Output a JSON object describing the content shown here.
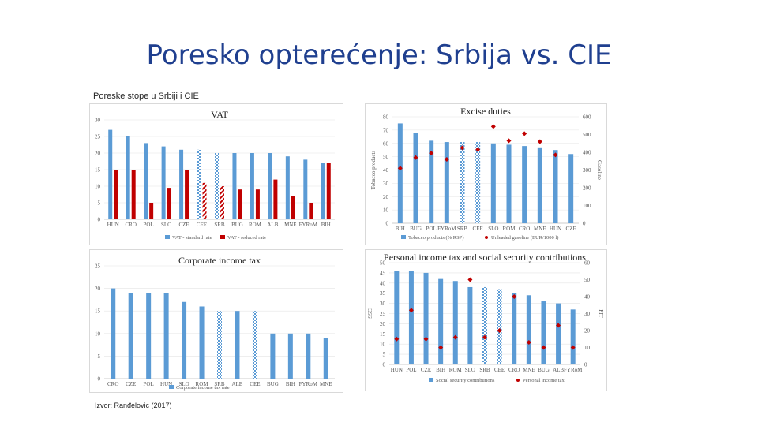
{
  "page": {
    "title": "Poresko opterećenje: Srbija vs. CIE",
    "subtitle": "Poreske stope u Srbiji i CIE",
    "source": "Izvor: Ranđelovic (2017)"
  },
  "colors": {
    "blue": "#5b9bd5",
    "red": "#c00000",
    "title": "#1f3f8f"
  },
  "chart_data": [
    {
      "type": "bar",
      "title": "VAT",
      "categories": [
        "HUN",
        "CRO",
        "POL",
        "SLO",
        "CZE",
        "CEE",
        "SRB",
        "BUG",
        "ROM",
        "ALB",
        "MNE",
        "FYRoM",
        "BIH"
      ],
      "series": [
        {
          "name": "VAT - standard rate",
          "values": [
            27,
            25,
            23,
            22,
            21,
            21,
            20,
            20,
            20,
            20,
            19,
            18,
            17
          ]
        },
        {
          "name": "VAT - reduced rate",
          "values": [
            15,
            15,
            5,
            9.5,
            15,
            11,
            10,
            9,
            9,
            12,
            7,
            5,
            17
          ]
        }
      ],
      "hatched": [
        "CEE",
        "SRB"
      ],
      "ylim": [
        0,
        30
      ],
      "yticks": [
        0,
        5,
        10,
        15,
        20,
        25,
        30
      ]
    },
    {
      "type": "bar+scatter",
      "title": "Excise duties",
      "categories": [
        "BIH",
        "BUG",
        "POL",
        "FYRoM",
        "SRB",
        "CEE",
        "SLO",
        "ROM",
        "CRO",
        "MNE",
        "HUN",
        "CZE"
      ],
      "series": [
        {
          "name": "Tobacco products (% RSP)",
          "values": [
            75,
            68,
            62,
            61,
            61,
            61,
            60,
            59,
            58,
            57,
            55,
            52
          ]
        },
        {
          "name": "Unleaded gasoline (EUR/1000 l)",
          "values": [
            310,
            370,
            395,
            360,
            425,
            415,
            545,
            465,
            505,
            460,
            385,
            null
          ]
        }
      ],
      "hatched": [
        "SRB",
        "CEE"
      ],
      "ylim_left": [
        0,
        80
      ],
      "yticks_left": [
        0,
        10,
        20,
        30,
        40,
        50,
        60,
        70,
        80
      ],
      "ylabel_left": "Tobacco products",
      "ylim_right": [
        0,
        600
      ],
      "yticks_right": [
        0,
        100,
        200,
        300,
        400,
        500,
        600
      ],
      "ylabel_right": "Gasoline"
    },
    {
      "type": "bar",
      "title": "Corporate income tax",
      "categories": [
        "CRO",
        "CZE",
        "POL",
        "HUN",
        "SLO",
        "ROM",
        "SRB",
        "ALB",
        "CEE",
        "BUG",
        "BIH",
        "FYRoM",
        "MNE"
      ],
      "series": [
        {
          "name": "Corporate income tax rate",
          "values": [
            20,
            19,
            19,
            19,
            17,
            16,
            15,
            15,
            15,
            10,
            10,
            10,
            9
          ]
        }
      ],
      "hatched": [
        "SRB",
        "CEE"
      ],
      "ylim": [
        0,
        25
      ],
      "yticks": [
        0,
        5,
        10,
        15,
        20,
        25
      ]
    },
    {
      "type": "bar+scatter",
      "title": "Personal income tax and social security contributions",
      "categories": [
        "HUN",
        "POL",
        "CZE",
        "BIH",
        "ROM",
        "SLO",
        "SRB",
        "CEE",
        "CRO",
        "MNE",
        "BUG",
        "ALB",
        "FYRoM"
      ],
      "series": [
        {
          "name": "Social security contributions",
          "values": [
            46,
            46,
            45,
            42,
            41,
            38,
            38,
            37,
            35,
            34,
            31,
            30,
            27
          ]
        },
        {
          "name": "Personal income tax",
          "values": [
            15,
            32,
            15,
            10,
            16,
            50,
            16,
            20,
            40,
            13,
            10,
            23,
            10
          ]
        }
      ],
      "hatched": [
        "SRB",
        "CEE"
      ],
      "ylim_left": [
        0,
        50
      ],
      "yticks_left": [
        0,
        5,
        10,
        15,
        20,
        25,
        30,
        35,
        40,
        45,
        50
      ],
      "ylabel_left": "SSC",
      "ylim_right": [
        0,
        60
      ],
      "yticks_right": [
        0,
        10,
        20,
        30,
        40,
        50,
        60
      ],
      "ylabel_right": "PIT"
    }
  ]
}
